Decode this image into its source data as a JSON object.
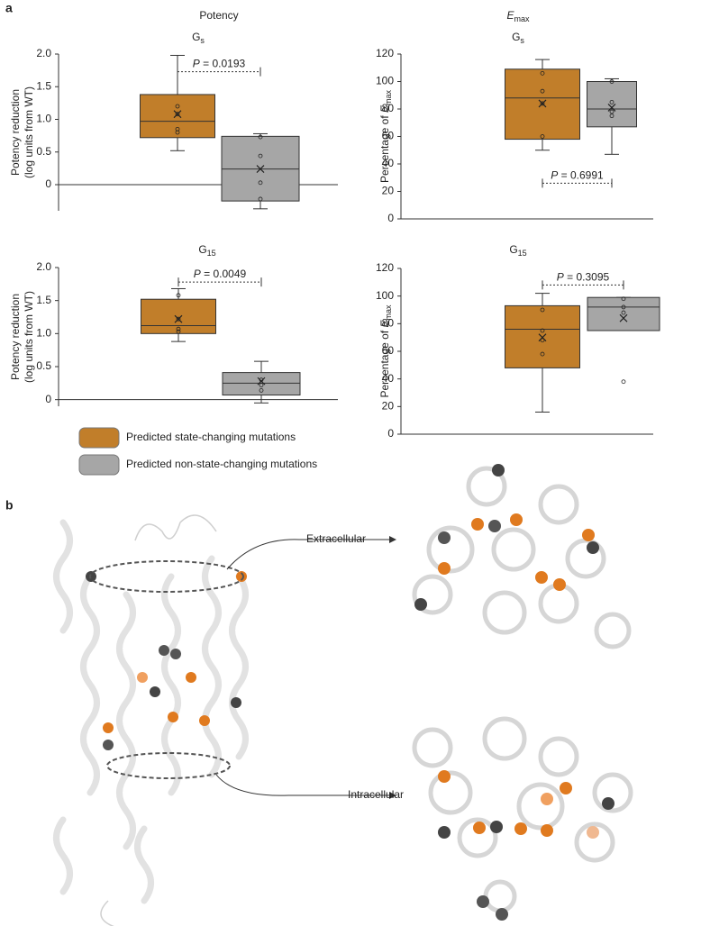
{
  "panel_labels": [
    "a",
    "b"
  ],
  "column_titles": {
    "potency": "Potency",
    "emax": {
      "italic": "E",
      "sub": "max"
    }
  },
  "chart_data": [
    {
      "type": "box",
      "title": {
        "main": "G",
        "sub": "s"
      },
      "ylabel": {
        "lines": [
          "Potency reduction",
          "(log units from WT)"
        ]
      },
      "ylim": [
        -0.4,
        2.0
      ],
      "yticks": [
        0,
        0.5,
        {
          "value": 1.0,
          "label": "1.0"
        },
        1.5,
        {
          "value": 2.0,
          "label": "2.0"
        }
      ],
      "series": [
        {
          "color": "#c17e2a",
          "min": 0.52,
          "q1": 0.72,
          "median": 0.97,
          "q3": 1.38,
          "max": 1.98,
          "mean": 1.08,
          "points": [
            1.2,
            1.08,
            0.85,
            0.8
          ]
        },
        {
          "color": "#a6a6a6",
          "min": -0.37,
          "q1": -0.25,
          "median": 0.24,
          "q3": 0.74,
          "max": 0.78,
          "mean": 0.24,
          "points": [
            0.73,
            0.44,
            0.03,
            -0.22
          ]
        }
      ],
      "annotation": {
        "symbol": "P",
        "text": " = 0.0193",
        "y": 1.73
      }
    },
    {
      "type": "box",
      "title": {
        "main": "G",
        "sub": "s"
      },
      "ylabel": {
        "text": "Percentage of ",
        "italic": "E",
        "sub": "max"
      },
      "ylim": [
        0,
        120
      ],
      "yticks": [
        0,
        20,
        40,
        60,
        80,
        100,
        120
      ],
      "series": [
        {
          "color": "#c17e2a",
          "min": 50,
          "q1": 58,
          "median": 88,
          "q3": 109,
          "max": 116,
          "mean": 84,
          "points": [
            106,
            93,
            84,
            60
          ]
        },
        {
          "color": "#a6a6a6",
          "min": 47,
          "q1": 67,
          "median": 80,
          "q3": 100,
          "max": 102,
          "mean": 81,
          "points": [
            100,
            85,
            78,
            75
          ]
        }
      ],
      "annotation": {
        "symbol": "P",
        "text": " = 0.6991",
        "y": 26
      }
    },
    {
      "type": "box",
      "title": {
        "main": "G",
        "sub": "15"
      },
      "ylabel": {
        "lines": [
          "Potency reduction",
          "(log units from WT)"
        ]
      },
      "ylim": [
        -0.1,
        2.0
      ],
      "yticks": [
        0,
        0.5,
        {
          "value": 1.0,
          "label": "1.0"
        },
        1.5,
        {
          "value": 2.0,
          "label": "2.0"
        }
      ],
      "series": [
        {
          "color": "#c17e2a",
          "min": 0.88,
          "q1": 1.0,
          "median": 1.12,
          "q3": 1.52,
          "max": 1.68,
          "mean": 1.22,
          "points": [
            1.58,
            1.22,
            1.07,
            1.03
          ]
        },
        {
          "color": "#a6a6a6",
          "min": -0.05,
          "q1": 0.07,
          "median": 0.25,
          "q3": 0.41,
          "max": 0.58,
          "mean": 0.28,
          "points": [
            0.3,
            0.22,
            0.14
          ]
        }
      ],
      "annotation": {
        "symbol": "P",
        "text": " = 0.0049",
        "y": 1.78
      }
    },
    {
      "type": "box",
      "title": {
        "main": "G",
        "sub": "15"
      },
      "ylabel": {
        "text": "Percentage of ",
        "italic": "E",
        "sub": "max"
      },
      "ylim": [
        0,
        120
      ],
      "yticks": [
        0,
        20,
        40,
        60,
        80,
        100,
        120
      ],
      "series": [
        {
          "color": "#c17e2a",
          "min": 16,
          "q1": 48,
          "median": 76,
          "q3": 93,
          "max": 102,
          "mean": 70,
          "points": [
            90,
            75,
            68,
            58
          ]
        },
        {
          "color": "#a6a6a6",
          "min": 75,
          "q1": 75,
          "median": 92,
          "q3": 99,
          "max": 99,
          "mean": 84,
          "points": [
            98,
            92,
            88,
            38
          ]
        }
      ],
      "annotation": {
        "symbol": "P",
        "text": " = 0.3095",
        "y": 108
      }
    }
  ],
  "legend": [
    {
      "label": "Predicted state-changing mutations",
      "color": "#c17e2a"
    },
    {
      "label": "Predicted non-state-changing mutations",
      "color": "#a6a6a6"
    }
  ],
  "structure_labels": {
    "extracellular": "Extracellular",
    "intracellular": "Intracellular"
  }
}
